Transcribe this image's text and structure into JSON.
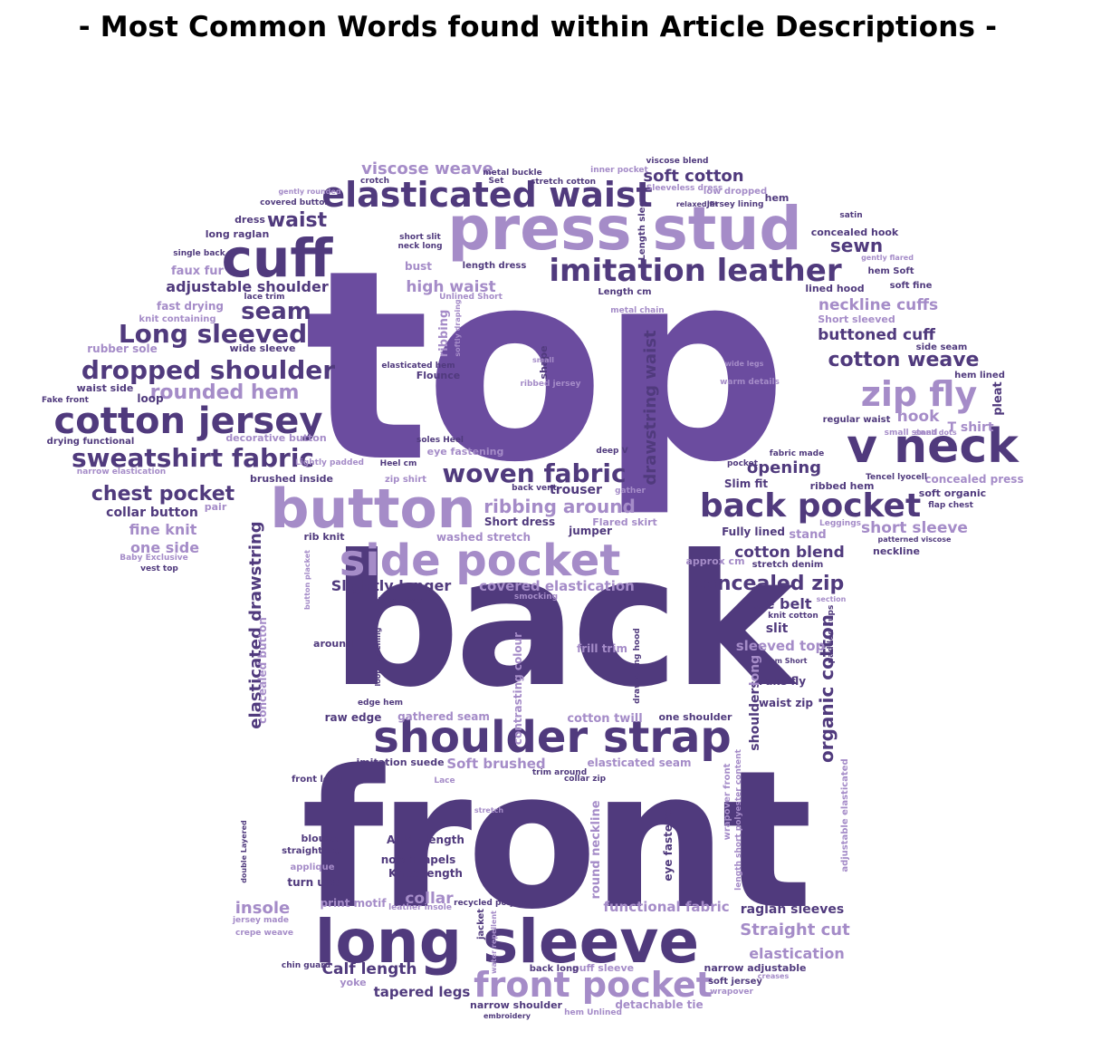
{
  "title": "- Most Common Words found within Article Descriptions -",
  "colors": {
    "c1": "#6b4c9f",
    "c2": "#503a7d",
    "c3": "#a58cc8",
    "c4": "#7d63b0",
    "c5": "#3f2d66"
  },
  "words": [
    {
      "text": "top",
      "color": "c1"
    },
    {
      "text": "back",
      "color": "c2"
    },
    {
      "text": "front",
      "color": "c2"
    },
    {
      "text": "press stud",
      "color": "c3"
    },
    {
      "text": "button",
      "color": "c3"
    },
    {
      "text": "long sleeve",
      "color": "c2"
    },
    {
      "text": "side pocket",
      "color": "c3"
    },
    {
      "text": "shoulder strap",
      "color": "c2"
    },
    {
      "text": "back pocket",
      "color": "c2"
    },
    {
      "text": "front pocket",
      "color": "c3"
    },
    {
      "text": "elasticated waist",
      "color": "c2"
    },
    {
      "text": "imitation leather",
      "color": "c2"
    },
    {
      "text": "cuff",
      "color": "c2"
    },
    {
      "text": "cotton jersey",
      "color": "c2"
    },
    {
      "text": "v neck",
      "color": "c2"
    },
    {
      "text": "zip fly",
      "color": "c3"
    },
    {
      "text": "dropped shoulder",
      "color": "c2"
    },
    {
      "text": "sweatshirt fabric",
      "color": "c2"
    },
    {
      "text": "woven fabric",
      "color": "c2"
    },
    {
      "text": "Long sleeved",
      "color": "c2"
    },
    {
      "text": "cotton weave",
      "color": "c2"
    },
    {
      "text": "concealed zip",
      "color": "c2"
    },
    {
      "text": "rounded hem",
      "color": "c3"
    },
    {
      "text": "chest pocket",
      "color": "c2"
    },
    {
      "text": "seam",
      "color": "c2"
    },
    {
      "text": "viscose weave",
      "color": "c3"
    },
    {
      "text": "soft cotton",
      "color": "c2"
    },
    {
      "text": "waist",
      "color": "c2"
    },
    {
      "text": "sewn",
      "color": "c2"
    },
    {
      "text": "adjustable shoulder",
      "color": "c2"
    },
    {
      "text": "high waist",
      "color": "c3"
    },
    {
      "text": "neckline cuffs",
      "color": "c3"
    },
    {
      "text": "buttoned cuff",
      "color": "c2"
    },
    {
      "text": "ribbing around",
      "color": "c3"
    },
    {
      "text": "opening",
      "color": "c2"
    },
    {
      "text": "drawstring waist",
      "color": "c2"
    },
    {
      "text": "elasticated drawstring",
      "color": "c2"
    },
    {
      "text": "organic cotton",
      "color": "c2"
    },
    {
      "text": "short sleeve",
      "color": "c3"
    },
    {
      "text": "cotton blend",
      "color": "c2"
    },
    {
      "text": "Straight cut",
      "color": "c3"
    },
    {
      "text": "elastication",
      "color": "c3"
    },
    {
      "text": "raglan sleeves",
      "color": "c2"
    },
    {
      "text": "functional fabric",
      "color": "c3"
    },
    {
      "text": "tie belt",
      "color": "c2"
    },
    {
      "text": "covered elastication",
      "color": "c3"
    },
    {
      "text": "Slightly longer",
      "color": "c2"
    },
    {
      "text": "fine knit",
      "color": "c3"
    },
    {
      "text": "one side",
      "color": "c3"
    },
    {
      "text": "collar button",
      "color": "c2"
    },
    {
      "text": "Calf length",
      "color": "c2"
    },
    {
      "text": "tapered legs",
      "color": "c2"
    },
    {
      "text": "insole",
      "color": "c3"
    },
    {
      "text": "collar",
      "color": "c3"
    },
    {
      "text": "hook",
      "color": "c3"
    },
    {
      "text": "T shirt",
      "color": "c3"
    },
    {
      "text": "concealed press",
      "color": "c3"
    },
    {
      "text": "narrow shoulder",
      "color": "c2"
    },
    {
      "text": "detachable tie",
      "color": "c3"
    },
    {
      "text": "Soft brushed",
      "color": "c3"
    },
    {
      "text": "cotton twill",
      "color": "c3"
    },
    {
      "text": "gathered seam",
      "color": "c3"
    },
    {
      "text": "raw edge",
      "color": "c2"
    },
    {
      "text": "Ankle length",
      "color": "c2"
    },
    {
      "text": "notch lapels",
      "color": "c2"
    },
    {
      "text": "Knee length",
      "color": "c2"
    },
    {
      "text": "print motif",
      "color": "c3"
    },
    {
      "text": "turn ups",
      "color": "c2"
    },
    {
      "text": "round neckline",
      "color": "c3"
    },
    {
      "text": "elasticated seam",
      "color": "c3"
    },
    {
      "text": "eye fastener",
      "color": "c2"
    },
    {
      "text": "puff sleeve",
      "color": "c3"
    },
    {
      "text": "narrow adjustable",
      "color": "c2"
    },
    {
      "text": "soft jersey",
      "color": "c2"
    },
    {
      "text": "yoke",
      "color": "c3"
    },
    {
      "text": "back long",
      "color": "c2"
    },
    {
      "text": "faux fur",
      "color": "c3"
    },
    {
      "text": "fast drying",
      "color": "c3"
    },
    {
      "text": "knit containing",
      "color": "c3"
    },
    {
      "text": "rubber sole",
      "color": "c3"
    },
    {
      "text": "waist side",
      "color": "c2"
    },
    {
      "text": "loop",
      "color": "c2"
    },
    {
      "text": "drying functional",
      "color": "c2"
    },
    {
      "text": "decorative button",
      "color": "c3"
    },
    {
      "text": "brushed inside",
      "color": "c2"
    },
    {
      "text": "zip shirt",
      "color": "c3"
    },
    {
      "text": "trouser",
      "color": "c2"
    },
    {
      "text": "Short dress",
      "color": "c2"
    },
    {
      "text": "Flared skirt",
      "color": "c3"
    },
    {
      "text": "jumper",
      "color": "c2"
    },
    {
      "text": "washed stretch",
      "color": "c3"
    },
    {
      "text": "rib knit",
      "color": "c2"
    },
    {
      "text": "pair",
      "color": "c3"
    },
    {
      "text": "approx cm",
      "color": "c3"
    },
    {
      "text": "stretch denim",
      "color": "c2"
    },
    {
      "text": "Fully lined",
      "color": "c2"
    },
    {
      "text": "stand",
      "color": "c3"
    },
    {
      "text": "ribbed hem",
      "color": "c2"
    },
    {
      "text": "soft organic",
      "color": "c2"
    },
    {
      "text": "Slim fit",
      "color": "c2"
    },
    {
      "text": "slit",
      "color": "c2"
    },
    {
      "text": "sleeved top",
      "color": "c3"
    },
    {
      "text": "Fake fly",
      "color": "c2"
    },
    {
      "text": "waist zip",
      "color": "c2"
    },
    {
      "text": "shoulders",
      "color": "c2"
    },
    {
      "text": "long",
      "color": "c3"
    },
    {
      "text": "concealed hook",
      "color": "c2"
    },
    {
      "text": "hem Soft",
      "color": "c2"
    },
    {
      "text": "soft fine",
      "color": "c2"
    },
    {
      "text": "lined hood",
      "color": "c2"
    },
    {
      "text": "Short sleeved",
      "color": "c3"
    },
    {
      "text": "side seam",
      "color": "c2"
    },
    {
      "text": "hem lined",
      "color": "c2"
    },
    {
      "text": "pleat",
      "color": "c2"
    },
    {
      "text": "regular waist",
      "color": "c2"
    },
    {
      "text": "small stand",
      "color": "c3"
    },
    {
      "text": "Tencel lyocell",
      "color": "c2"
    },
    {
      "text": "flap chest",
      "color": "c2"
    },
    {
      "text": "neckline",
      "color": "c2"
    },
    {
      "text": "metal chain",
      "color": "c3"
    },
    {
      "text": "Length cm",
      "color": "c2"
    },
    {
      "text": "length dress",
      "color": "c2"
    },
    {
      "text": "bust",
      "color": "c3"
    },
    {
      "text": "ribbing",
      "color": "c3"
    },
    {
      "text": "eye fastening",
      "color": "c3"
    },
    {
      "text": "Flounce",
      "color": "c2"
    },
    {
      "text": "deep V",
      "color": "c2"
    },
    {
      "text": "imitation suede",
      "color": "c2"
    },
    {
      "text": "front long",
      "color": "c2"
    },
    {
      "text": "blouse",
      "color": "c2"
    },
    {
      "text": "straight leg",
      "color": "c2"
    },
    {
      "text": "applique",
      "color": "c3"
    },
    {
      "text": "jersey made",
      "color": "c3"
    },
    {
      "text": "crepe weave",
      "color": "c3"
    },
    {
      "text": "frill trim",
      "color": "c3"
    },
    {
      "text": "one shoulder",
      "color": "c2"
    },
    {
      "text": "contrasting colour",
      "color": "c3"
    },
    {
      "text": "around",
      "color": "c2"
    },
    {
      "text": "concealed button",
      "color": "c3"
    },
    {
      "text": "chin guard",
      "color": "c2"
    },
    {
      "text": "recycled polyester",
      "color": "c2"
    },
    {
      "text": "leather insole",
      "color": "c3"
    },
    {
      "text": "patterned viscose",
      "color": "c2"
    },
    {
      "text": "hem Unlined",
      "color": "c3"
    },
    {
      "text": "small dots",
      "color": "c3"
    },
    {
      "text": "Leggings",
      "color": "c3"
    },
    {
      "text": "knit cotton",
      "color": "c2"
    },
    {
      "text": "wrapover front",
      "color": "c3"
    },
    {
      "text": "adjustable elasticated",
      "color": "c3"
    },
    {
      "text": "length short polyester content",
      "color": "c3"
    },
    {
      "text": "long raglan",
      "color": "c2"
    },
    {
      "text": "dress",
      "color": "c2"
    },
    {
      "text": "viscose blend",
      "color": "c2"
    },
    {
      "text": "hem",
      "color": "c2"
    },
    {
      "text": "satin",
      "color": "c2"
    },
    {
      "text": "gently flared",
      "color": "c3"
    },
    {
      "text": "wide sleeve",
      "color": "c2"
    },
    {
      "text": "Fake front",
      "color": "c2"
    },
    {
      "text": "lace trim",
      "color": "c2"
    },
    {
      "text": "single back",
      "color": "c2"
    },
    {
      "text": "covered button",
      "color": "c2"
    },
    {
      "text": "metal buckle",
      "color": "c2"
    },
    {
      "text": "stretch cotton",
      "color": "c2"
    },
    {
      "text": "inner pocket",
      "color": "c3"
    },
    {
      "text": "Sleeveless dress",
      "color": "c3"
    },
    {
      "text": "low dropped",
      "color": "c3"
    },
    {
      "text": "Jersey lining",
      "color": "c2"
    },
    {
      "text": "relaxed fit",
      "color": "c2"
    },
    {
      "text": "Length sleeves",
      "color": "c2"
    },
    {
      "text": "neck long",
      "color": "c2"
    },
    {
      "text": "short slit",
      "color": "c2"
    },
    {
      "text": "Unlined Short",
      "color": "c3"
    },
    {
      "text": "softly draping",
      "color": "c3"
    },
    {
      "text": "elasticated hem",
      "color": "c2"
    },
    {
      "text": "shape",
      "color": "c2"
    },
    {
      "text": "ribbed jersey",
      "color": "c3"
    },
    {
      "text": "warm details",
      "color": "c3"
    },
    {
      "text": "wide legs",
      "color": "c3"
    },
    {
      "text": "soles Heel",
      "color": "c2"
    },
    {
      "text": "fabric made",
      "color": "c2"
    },
    {
      "text": "gather",
      "color": "c3"
    },
    {
      "text": "pocket",
      "color": "c2"
    },
    {
      "text": "back vent",
      "color": "c2"
    },
    {
      "text": "Lightly padded",
      "color": "c3"
    },
    {
      "text": "Heel cm",
      "color": "c2"
    },
    {
      "text": "Baby Exclusive",
      "color": "c3"
    },
    {
      "text": "vest top",
      "color": "c2"
    },
    {
      "text": "narrow elastication",
      "color": "c3"
    },
    {
      "text": "button placket",
      "color": "c3"
    },
    {
      "text": "long wide",
      "color": "c2"
    },
    {
      "text": "loop fastening",
      "color": "c2"
    },
    {
      "text": "smocking",
      "color": "c3"
    },
    {
      "text": "drawstring hood",
      "color": "c2"
    },
    {
      "text": "wrapover",
      "color": "c3"
    },
    {
      "text": "creases",
      "color": "c3"
    },
    {
      "text": "embroidery",
      "color": "c2"
    },
    {
      "text": "Lace",
      "color": "c3"
    },
    {
      "text": "edge hem",
      "color": "c2"
    },
    {
      "text": "double Layered",
      "color": "c2"
    },
    {
      "text": "jacket",
      "color": "c2"
    },
    {
      "text": "water repellent",
      "color": "c3"
    },
    {
      "text": "padded cups",
      "color": "c2"
    },
    {
      "text": "hem Short",
      "color": "c2"
    },
    {
      "text": "trim around",
      "color": "c2"
    },
    {
      "text": "collar zip",
      "color": "c2"
    },
    {
      "text": "section",
      "color": "c3"
    },
    {
      "text": "stretch",
      "color": "c3"
    },
    {
      "text": "gently rounded",
      "color": "c3"
    },
    {
      "text": "crotch",
      "color": "c2"
    },
    {
      "text": "Set",
      "color": "c2"
    },
    {
      "text": "small",
      "color": "c3"
    }
  ]
}
